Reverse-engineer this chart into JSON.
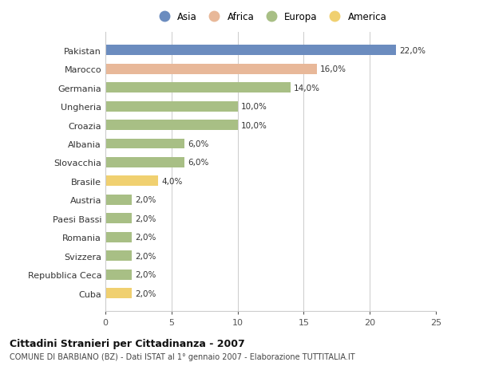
{
  "categories": [
    "Pakistan",
    "Marocco",
    "Germania",
    "Ungheria",
    "Croazia",
    "Albania",
    "Slovacchia",
    "Brasile",
    "Austria",
    "Paesi Bassi",
    "Romania",
    "Svizzera",
    "Repubblica Ceca",
    "Cuba"
  ],
  "values": [
    22.0,
    16.0,
    14.0,
    10.0,
    10.0,
    6.0,
    6.0,
    4.0,
    2.0,
    2.0,
    2.0,
    2.0,
    2.0,
    2.0
  ],
  "colors": [
    "#6b8cbf",
    "#e8b899",
    "#a8bf85",
    "#a8bf85",
    "#a8bf85",
    "#a8bf85",
    "#a8bf85",
    "#f0d070",
    "#a8bf85",
    "#a8bf85",
    "#a8bf85",
    "#a8bf85",
    "#a8bf85",
    "#f0d070"
  ],
  "legend_labels": [
    "Asia",
    "Africa",
    "Europa",
    "America"
  ],
  "legend_colors": [
    "#6b8cbf",
    "#e8b899",
    "#a8bf85",
    "#f0d070"
  ],
  "xlim": [
    0,
    25
  ],
  "xticks": [
    0,
    5,
    10,
    15,
    20,
    25
  ],
  "title_main": "Cittadini Stranieri per Cittadinanza - 2007",
  "title_sub": "COMUNE DI BARBIANO (BZ) - Dati ISTAT al 1° gennaio 2007 - Elaborazione TUTTITALIA.IT",
  "bar_height": 0.55,
  "background_color": "#ffffff",
  "grid_color": "#cccccc"
}
